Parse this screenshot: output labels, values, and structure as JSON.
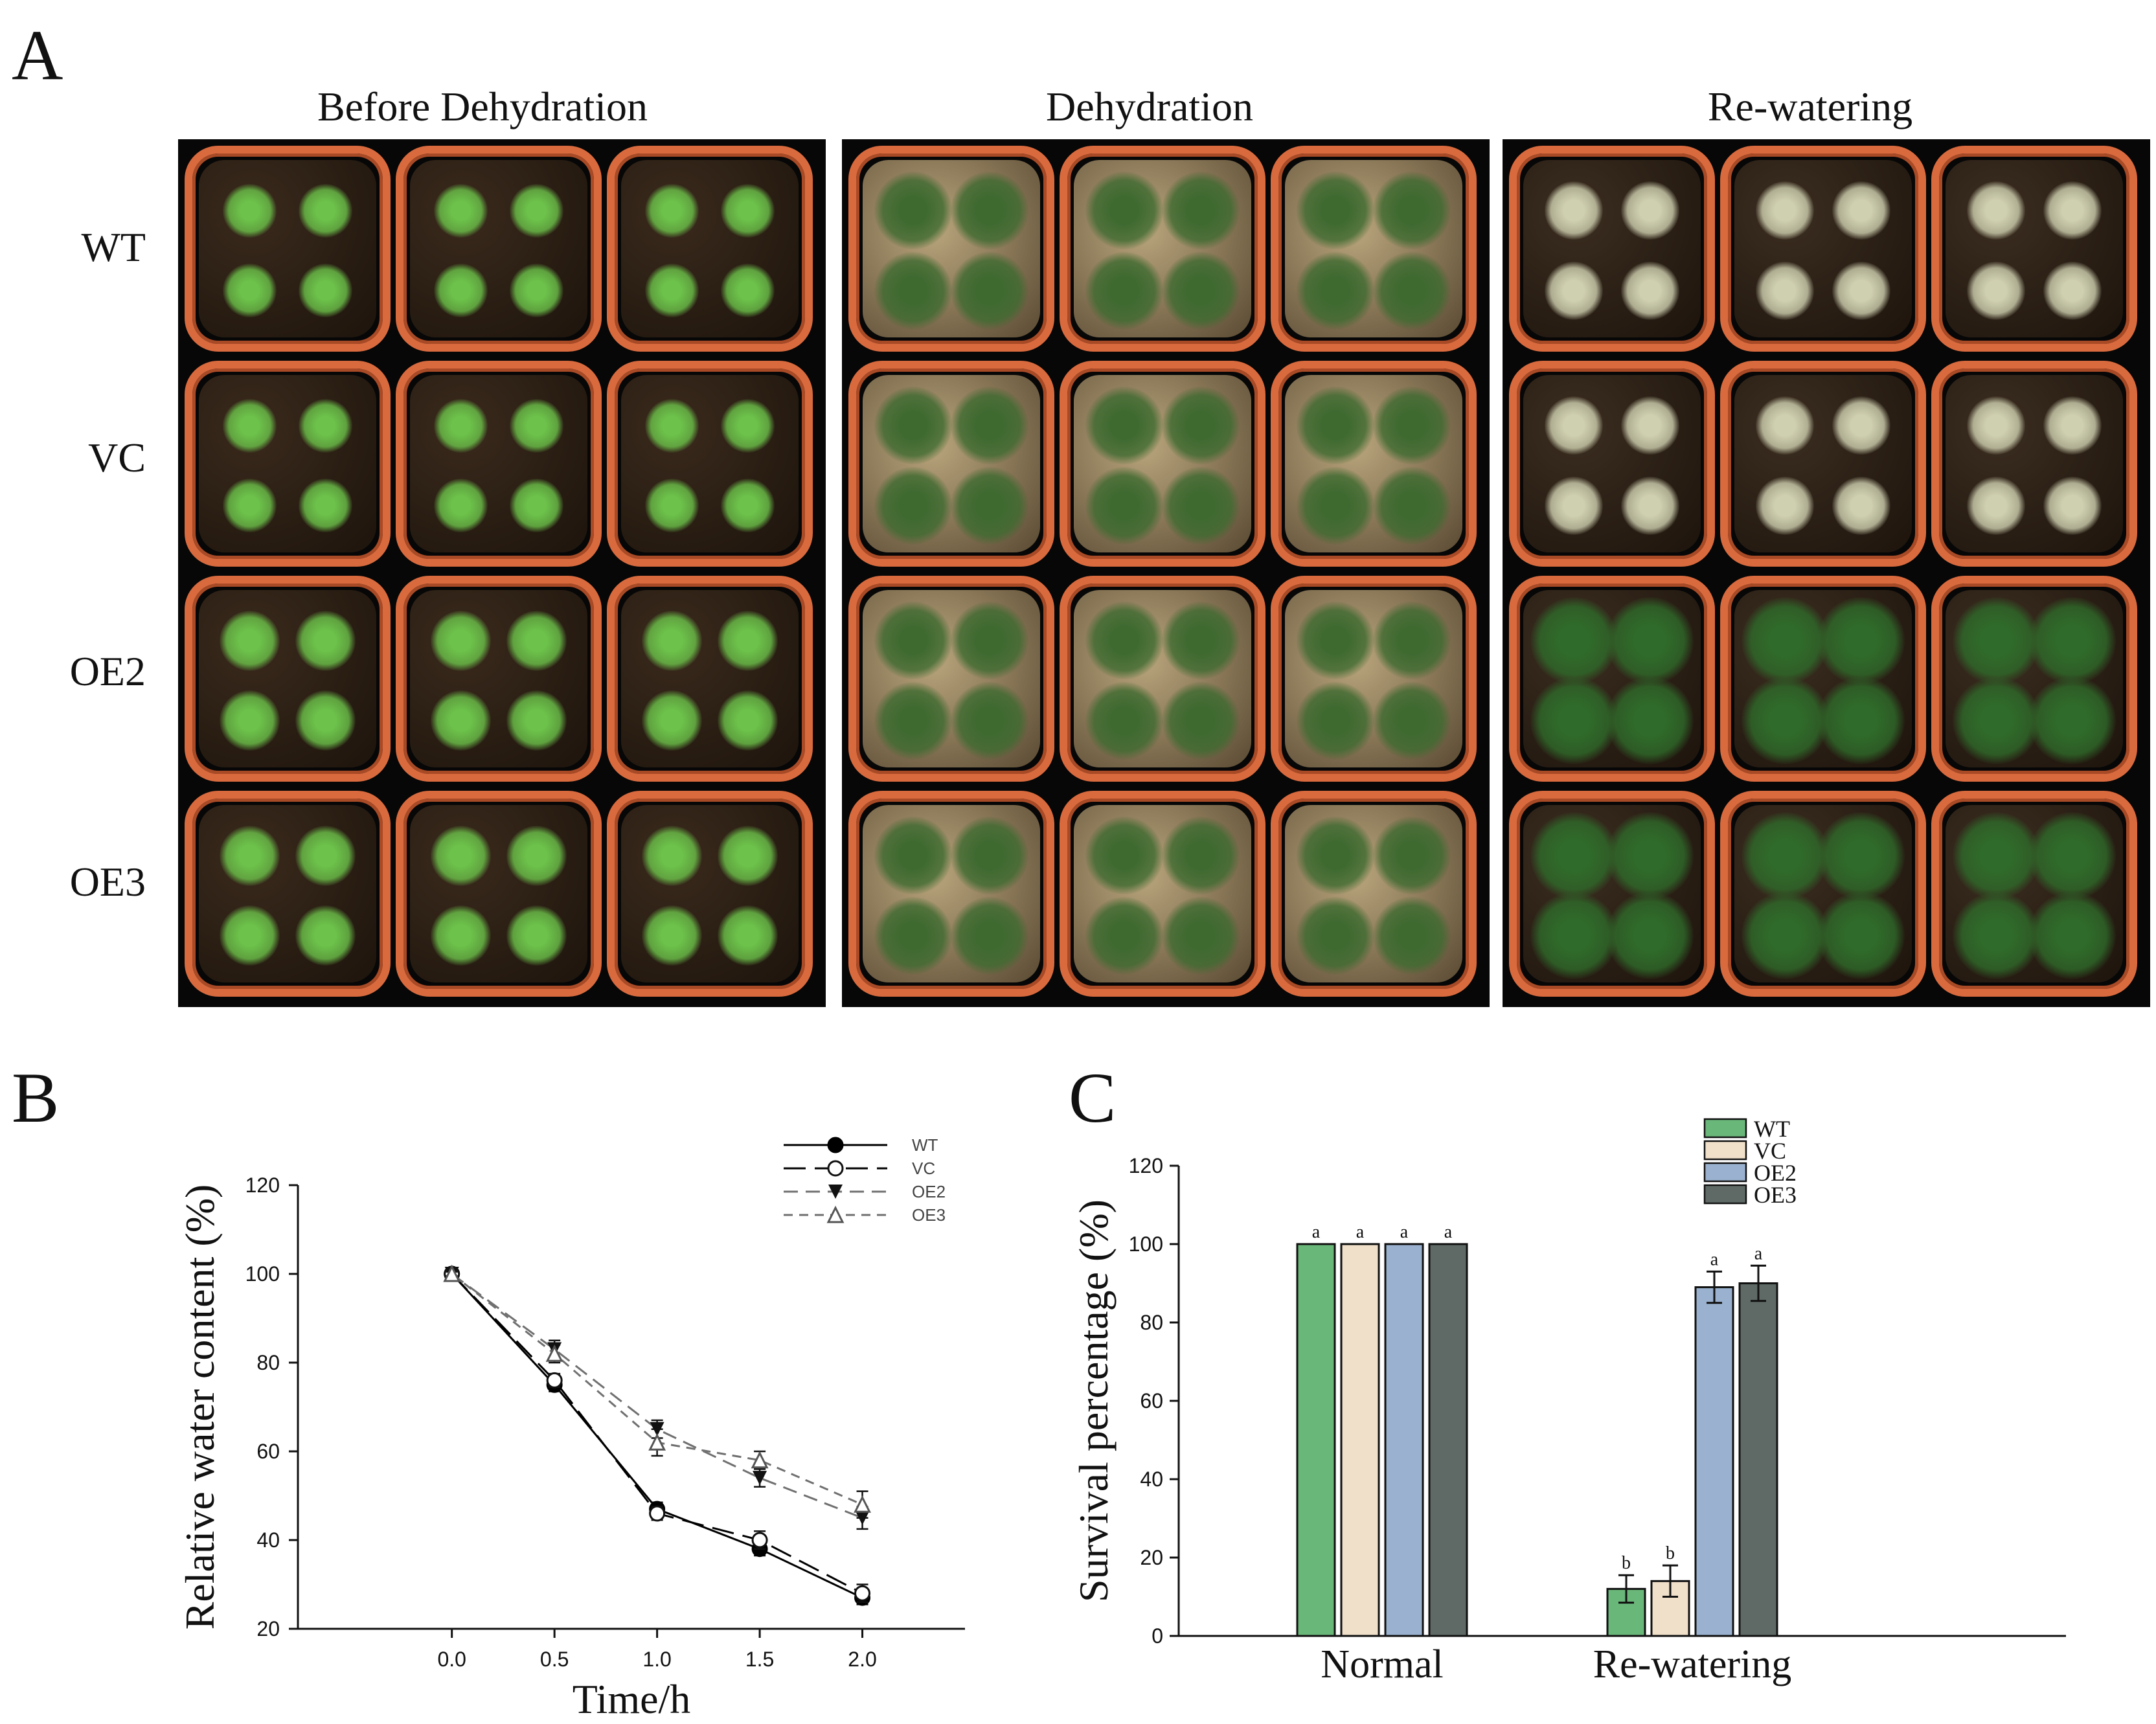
{
  "panels": {
    "a": {
      "letter": "A",
      "columns": [
        "Before Dehydration",
        "Dehydration",
        "Re-watering"
      ],
      "rows": [
        "WT",
        "VC",
        "OE2",
        "OE3"
      ]
    },
    "b": {
      "letter": "B"
    },
    "c": {
      "letter": "C"
    }
  },
  "chart_data": [
    {
      "type": "line",
      "xlabel": "Time/h",
      "ylabel": "Relative water content (%)",
      "xlim": [
        -0.75,
        2.5
      ],
      "ylim": [
        20,
        120
      ],
      "xticks": [
        0.0,
        0.5,
        1.0,
        1.5,
        2.0
      ],
      "xtick_labels": [
        "0.0",
        "0.5",
        "1.0",
        "1.5",
        "2.0"
      ],
      "yticks": [
        20,
        40,
        60,
        80,
        100,
        120
      ],
      "x": [
        0.0,
        0.5,
        1.0,
        1.5,
        2.0
      ],
      "legend_position": "top-right",
      "series": [
        {
          "name": "WT",
          "values": [
            100,
            75,
            47,
            38,
            27
          ],
          "errors": [
            0.5,
            1.5,
            1.5,
            1.5,
            1.5
          ],
          "marker": "filled-circle",
          "line": "solid",
          "color": "#000000"
        },
        {
          "name": "VC",
          "values": [
            100,
            76,
            46,
            40,
            28
          ],
          "errors": [
            0.5,
            1.5,
            1.5,
            2.0,
            2.0
          ],
          "marker": "open-circle",
          "line": "long-dash",
          "color": "#000000"
        },
        {
          "name": "OE2",
          "values": [
            100,
            83,
            65,
            54,
            45
          ],
          "errors": [
            0.5,
            2.0,
            2.0,
            2.0,
            2.5
          ],
          "marker": "filled-triangle-down",
          "line": "dash",
          "color": "#707070"
        },
        {
          "name": "OE3",
          "values": [
            100,
            82,
            62,
            58,
            48
          ],
          "errors": [
            0.5,
            2.0,
            3.0,
            2.0,
            3.0
          ],
          "marker": "open-triangle-up",
          "line": "short-dash",
          "color": "#707070"
        }
      ]
    },
    {
      "type": "bar",
      "xlabel": "",
      "ylabel": "Survival percentage (%)",
      "ylim": [
        0,
        120
      ],
      "yticks": [
        0,
        20,
        40,
        60,
        80,
        100,
        120
      ],
      "categories": [
        "Normal",
        "Re-watering"
      ],
      "legend_position": "top-right",
      "series": [
        {
          "name": "WT",
          "color": "#6ab77a",
          "values": [
            100,
            12
          ],
          "errors": [
            0,
            3.5
          ],
          "labels": [
            "a",
            "b"
          ]
        },
        {
          "name": "VC",
          "color": "#f0dfc9",
          "values": [
            100,
            14
          ],
          "errors": [
            0,
            4
          ],
          "labels": [
            "a",
            "b"
          ]
        },
        {
          "name": "OE2",
          "color": "#9ab2cf",
          "values": [
            100,
            89
          ],
          "errors": [
            0,
            4
          ],
          "labels": [
            "a",
            "a"
          ]
        },
        {
          "name": "OE3",
          "color": "#5f6a67",
          "values": [
            100,
            90
          ],
          "errors": [
            0,
            4.5
          ],
          "labels": [
            "a",
            "a"
          ]
        }
      ]
    }
  ],
  "colors": {
    "pot_rim": "#d96a3e",
    "photo_background": "#070707"
  }
}
